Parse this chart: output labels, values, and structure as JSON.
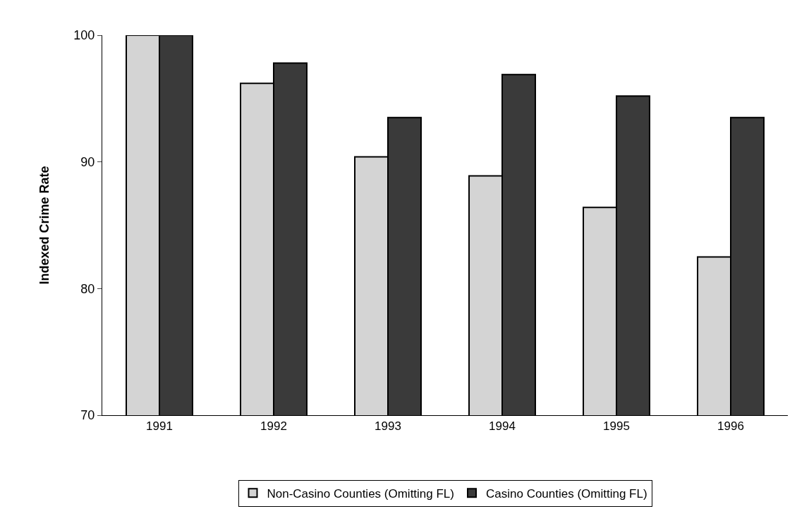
{
  "chart_data": {
    "type": "bar",
    "ylabel": "Indexed Crime Rate",
    "categories": [
      "1991",
      "1992",
      "1993",
      "1994",
      "1995",
      "1996"
    ],
    "series": [
      {
        "name": "Non-Casino Counties (Omitting FL)",
        "color": "#d4d4d4",
        "values": [
          100,
          96.2,
          90.4,
          88.9,
          86.4,
          82.5
        ]
      },
      {
        "name": "Casino Counties (Omitting FL)",
        "color": "#3a3a3a",
        "values": [
          100,
          97.8,
          93.5,
          96.9,
          95.2,
          93.5
        ]
      }
    ],
    "ylim": [
      70,
      100
    ],
    "yticks": [
      70,
      80,
      90,
      100
    ],
    "grid": false,
    "legend": "bottom"
  }
}
